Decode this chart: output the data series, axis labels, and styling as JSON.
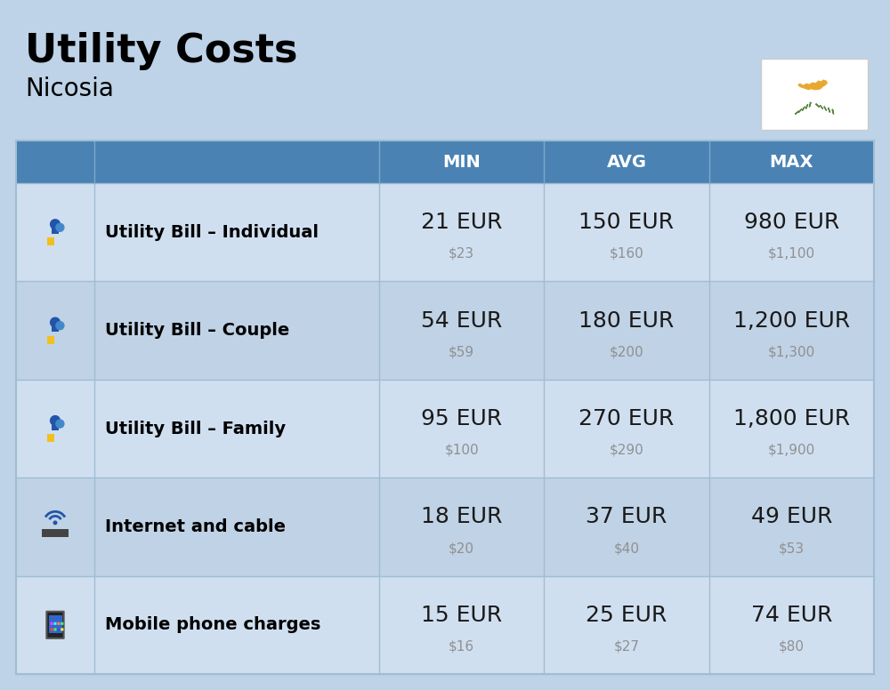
{
  "title": "Utility Costs",
  "subtitle": "Nicosia",
  "bg_color": "#bed3e8",
  "header_bg": "#4a82b4",
  "header_text_color": "#ffffff",
  "row_bg_light": "#d0dff0",
  "row_bg_dark": "#c0d2e5",
  "label_color": "#000000",
  "value_color": "#1a1a1a",
  "subvalue_color": "#909090",
  "divider_color": "#a0bdd4",
  "col_headers": [
    "MIN",
    "AVG",
    "MAX"
  ],
  "rows": [
    {
      "label": "Utility Bill – Individual",
      "min_eur": "21 EUR",
      "min_usd": "$23",
      "avg_eur": "150 EUR",
      "avg_usd": "$160",
      "max_eur": "980 EUR",
      "max_usd": "$1,100"
    },
    {
      "label": "Utility Bill – Couple",
      "min_eur": "54 EUR",
      "min_usd": "$59",
      "avg_eur": "180 EUR",
      "avg_usd": "$200",
      "max_eur": "1,200 EUR",
      "max_usd": "$1,300"
    },
    {
      "label": "Utility Bill – Family",
      "min_eur": "95 EUR",
      "min_usd": "$100",
      "avg_eur": "270 EUR",
      "avg_usd": "$290",
      "max_eur": "1,800 EUR",
      "max_usd": "$1,900"
    },
    {
      "label": "Internet and cable",
      "min_eur": "18 EUR",
      "min_usd": "$20",
      "avg_eur": "37 EUR",
      "avg_usd": "$40",
      "max_eur": "49 EUR",
      "max_usd": "$53"
    },
    {
      "label": "Mobile phone charges",
      "min_eur": "15 EUR",
      "min_usd": "$16",
      "avg_eur": "25 EUR",
      "avg_usd": "$27",
      "max_eur": "74 EUR",
      "max_usd": "$80"
    }
  ],
  "title_fontsize": 32,
  "subtitle_fontsize": 20,
  "header_fontsize": 14,
  "label_fontsize": 14,
  "value_fontsize": 18,
  "subvalue_fontsize": 11
}
